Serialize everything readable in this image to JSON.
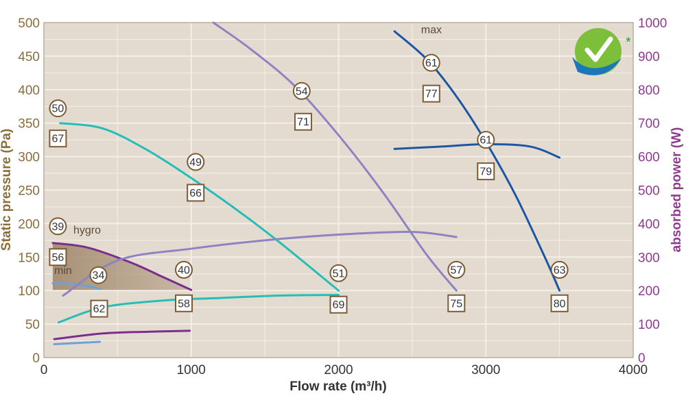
{
  "chart_data": {
    "type": "line",
    "xlabel": "Flow rate (m³/h)",
    "ylabel": "Static pressure (Pa)",
    "y2label": "absorbed power (W)",
    "xlim": [
      0,
      4000
    ],
    "ylim": [
      0,
      500
    ],
    "y2lim": [
      0,
      1000
    ],
    "x_ticks": [
      "0",
      "1000",
      "2000",
      "3000",
      "4000"
    ],
    "y_ticks": [
      "0",
      "50",
      "100",
      "150",
      "200",
      "250",
      "300",
      "350",
      "400",
      "450",
      "500"
    ],
    "y2_ticks": [
      "0",
      "100",
      "200",
      "300",
      "400",
      "500",
      "600",
      "700",
      "800",
      "900",
      "1000"
    ],
    "grid": true,
    "series": [
      {
        "key": "pressure-1",
        "axis": "left",
        "color": "#26bdb6",
        "points": [
          [
            110,
            350
          ],
          [
            400,
            342
          ],
          [
            700,
            310
          ],
          [
            1000,
            268
          ],
          [
            1300,
            222
          ],
          [
            1600,
            172
          ],
          [
            2000,
            100
          ]
        ]
      },
      {
        "key": "pressure-2",
        "axis": "left",
        "color": "#8e82c2",
        "points": [
          [
            1150,
            500
          ],
          [
            1400,
            461
          ],
          [
            1700,
            406
          ],
          [
            2000,
            332
          ],
          [
            2300,
            247
          ],
          [
            2600,
            153
          ],
          [
            2800,
            100
          ]
        ]
      },
      {
        "key": "pressure-3",
        "axis": "left",
        "color": "#1a56a3",
        "points": [
          [
            2380,
            487
          ],
          [
            2600,
            445
          ],
          [
            2800,
            390
          ],
          [
            3000,
            322
          ],
          [
            3200,
            243
          ],
          [
            3400,
            150
          ],
          [
            3500,
            100
          ]
        ]
      },
      {
        "key": "pressure-min",
        "axis": "left",
        "color": "#6fa1d8",
        "points": [
          [
            60,
            111
          ],
          [
            200,
            110
          ],
          [
            380,
            103
          ]
        ]
      },
      {
        "key": "pressure-hygro",
        "axis": "left",
        "color": "#7b2d8e",
        "points": [
          [
            60,
            171
          ],
          [
            300,
            164
          ],
          [
            600,
            141
          ],
          [
            800,
            121
          ],
          [
            1000,
            101
          ]
        ]
      },
      {
        "key": "power-1",
        "axis": "right",
        "color": "#26bdb6",
        "points": [
          [
            100,
            105
          ],
          [
            400,
            150
          ],
          [
            800,
            170
          ],
          [
            1200,
            178
          ],
          [
            1600,
            185
          ],
          [
            2000,
            187
          ]
        ]
      },
      {
        "key": "power-2",
        "axis": "right",
        "color": "#8e82c2",
        "points": [
          [
            130,
            185
          ],
          [
            500,
            290
          ],
          [
            1000,
            325
          ],
          [
            1500,
            350
          ],
          [
            2000,
            367
          ],
          [
            2500,
            375
          ],
          [
            2800,
            360
          ]
        ]
      },
      {
        "key": "power-3",
        "axis": "right",
        "color": "#1a56a3",
        "points": [
          [
            2380,
            623
          ],
          [
            2700,
            630
          ],
          [
            3000,
            637
          ],
          [
            3300,
            630
          ],
          [
            3500,
            597
          ]
        ]
      },
      {
        "key": "power-hygro",
        "axis": "right",
        "color": "#7b2d8e",
        "points": [
          [
            70,
            55
          ],
          [
            400,
            72
          ],
          [
            700,
            77
          ],
          [
            990,
            80
          ]
        ]
      },
      {
        "key": "power-min",
        "axis": "right",
        "color": "#6fa1d8",
        "points": [
          [
            70,
            40
          ],
          [
            200,
            43
          ],
          [
            380,
            47
          ]
        ]
      }
    ],
    "shaded_region": {
      "top": [
        [
          60,
          171
        ],
        [
          300,
          164
        ],
        [
          600,
          141
        ],
        [
          800,
          121
        ],
        [
          1000,
          101
        ]
      ],
      "bottom": 101,
      "color": "#a58d72"
    },
    "curve_labels": [
      {
        "text": "max",
        "x": 2560,
        "y": 484
      },
      {
        "text": "hygro",
        "x": 200,
        "y": 185
      },
      {
        "text": "min",
        "x": 70,
        "y": 125
      }
    ],
    "circle_marks": [
      {
        "text": "50",
        "x": 95,
        "y": 372
      },
      {
        "text": "49",
        "x": 1030,
        "y": 292
      },
      {
        "text": "39",
        "x": 95,
        "y": 196
      },
      {
        "text": "34",
        "x": 370,
        "y": 123
      },
      {
        "text": "40",
        "x": 950,
        "y": 131
      },
      {
        "text": "54",
        "x": 1750,
        "y": 398
      },
      {
        "text": "51",
        "x": 2000,
        "y": 126
      },
      {
        "text": "61",
        "x": 2630,
        "y": 440
      },
      {
        "text": "61",
        "x": 3000,
        "y": 325
      },
      {
        "text": "57",
        "x": 2800,
        "y": 131
      },
      {
        "text": "63",
        "x": 3500,
        "y": 131
      }
    ],
    "square_marks": [
      {
        "text": "67",
        "x": 95,
        "y": 327
      },
      {
        "text": "66",
        "x": 1030,
        "y": 246
      },
      {
        "text": "56",
        "x": 95,
        "y": 150
      },
      {
        "text": "62",
        "x": 375,
        "y": 73
      },
      {
        "text": "58",
        "x": 950,
        "y": 81
      },
      {
        "text": "71",
        "x": 1760,
        "y": 352
      },
      {
        "text": "69",
        "x": 2000,
        "y": 79
      },
      {
        "text": "77",
        "x": 2630,
        "y": 394
      },
      {
        "text": "79",
        "x": 3000,
        "y": 278
      },
      {
        "text": "75",
        "x": 2800,
        "y": 81
      },
      {
        "text": "80",
        "x": 3500,
        "y": 81
      }
    ]
  },
  "logo": {
    "asterisk": "*",
    "icon": "checkmark-badge-icon"
  },
  "colors": {
    "plot_bg": "#e4dbd0",
    "grid": "#f4efe8",
    "mark_border": "#7a5b34",
    "text_brown": "#8a6d3b",
    "text_purple": "#8e3a8f"
  }
}
